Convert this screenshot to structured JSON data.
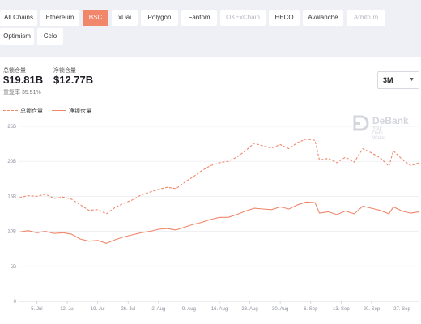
{
  "chains": [
    {
      "label": "All Chains",
      "state": "normal"
    },
    {
      "label": "Ethereum",
      "state": "normal"
    },
    {
      "label": "BSC",
      "state": "active"
    },
    {
      "label": "xDai",
      "state": "normal"
    },
    {
      "label": "Polygon",
      "state": "normal"
    },
    {
      "label": "Fantom",
      "state": "normal"
    },
    {
      "label": "OKExChain",
      "state": "disabled"
    },
    {
      "label": "HECO",
      "state": "normal"
    },
    {
      "label": "Avalanche",
      "state": "normal"
    },
    {
      "label": "Arbitrum",
      "state": "disabled"
    },
    {
      "label": "Optimism",
      "state": "normal"
    },
    {
      "label": "Celo",
      "state": "normal"
    }
  ],
  "stats": {
    "total_label": "总锁仓量",
    "total_value": "$19.81B",
    "net_label": "净锁仓量",
    "net_value": "$12.77B",
    "ratio_text": "重复率 35.51%"
  },
  "period": {
    "value": "3M"
  },
  "legend": {
    "total": "总锁仓量",
    "net": "净锁仓量"
  },
  "watermark": {
    "title": "DeBank",
    "subtitle": "Your DeFi Wallet"
  },
  "colors": {
    "accent": "#f0866a",
    "grid": "#e6e8ee",
    "axis_text": "#8a8e9a"
  },
  "chart_data": {
    "type": "line",
    "y_unit": "B",
    "ylim": [
      0,
      25
    ],
    "y_ticks": [
      "0",
      "5B",
      "10B",
      "15B",
      "20B",
      "25B"
    ],
    "x_ticks": [
      "5. Jul",
      "12. Jul",
      "19. Jul",
      "26. Jul",
      "2. Aug",
      "9. Aug",
      "16. Aug",
      "23. Aug",
      "30. Aug",
      "6. Sep",
      "13. Sep",
      "20. Sep",
      "27. Sep"
    ],
    "x_range": [
      "2021-07-01",
      "2021-10-01"
    ],
    "grid": true,
    "legend_position": "top-left",
    "series": [
      {
        "name": "总锁仓量",
        "style": "dashed",
        "points": [
          [
            "2021-07-01",
            14.8
          ],
          [
            "2021-07-03",
            15.1
          ],
          [
            "2021-07-05",
            15.0
          ],
          [
            "2021-07-07",
            15.3
          ],
          [
            "2021-07-09",
            14.7
          ],
          [
            "2021-07-11",
            14.9
          ],
          [
            "2021-07-13",
            14.6
          ],
          [
            "2021-07-15",
            13.8
          ],
          [
            "2021-07-17",
            13.0
          ],
          [
            "2021-07-19",
            13.1
          ],
          [
            "2021-07-21",
            12.5
          ],
          [
            "2021-07-23",
            13.4
          ],
          [
            "2021-07-25",
            14.0
          ],
          [
            "2021-07-27",
            14.5
          ],
          [
            "2021-07-29",
            15.2
          ],
          [
            "2021-07-31",
            15.6
          ],
          [
            "2021-08-02",
            16.0
          ],
          [
            "2021-08-04",
            16.3
          ],
          [
            "2021-08-06",
            16.1
          ],
          [
            "2021-08-08",
            17.0
          ],
          [
            "2021-08-10",
            17.8
          ],
          [
            "2021-08-12",
            18.7
          ],
          [
            "2021-08-14",
            19.4
          ],
          [
            "2021-08-16",
            19.8
          ],
          [
            "2021-08-18",
            20.0
          ],
          [
            "2021-08-20",
            20.6
          ],
          [
            "2021-08-22",
            21.5
          ],
          [
            "2021-08-24",
            22.6
          ],
          [
            "2021-08-26",
            22.2
          ],
          [
            "2021-08-28",
            21.9
          ],
          [
            "2021-08-30",
            22.4
          ],
          [
            "2021-09-01",
            21.8
          ],
          [
            "2021-09-03",
            22.7
          ],
          [
            "2021-09-05",
            23.2
          ],
          [
            "2021-09-07",
            23.0
          ],
          [
            "2021-09-08",
            20.2
          ],
          [
            "2021-09-10",
            20.4
          ],
          [
            "2021-09-12",
            19.8
          ],
          [
            "2021-09-14",
            20.6
          ],
          [
            "2021-09-16",
            19.9
          ],
          [
            "2021-09-18",
            21.8
          ],
          [
            "2021-09-20",
            21.2
          ],
          [
            "2021-09-22",
            20.5
          ],
          [
            "2021-09-24",
            19.3
          ],
          [
            "2021-09-25",
            21.5
          ],
          [
            "2021-09-27",
            20.3
          ],
          [
            "2021-09-29",
            19.4
          ],
          [
            "2021-10-01",
            19.8
          ]
        ]
      },
      {
        "name": "净锁仓量",
        "style": "solid",
        "points": [
          [
            "2021-07-01",
            9.9
          ],
          [
            "2021-07-03",
            10.1
          ],
          [
            "2021-07-05",
            9.8
          ],
          [
            "2021-07-07",
            10.0
          ],
          [
            "2021-07-09",
            9.7
          ],
          [
            "2021-07-11",
            9.8
          ],
          [
            "2021-07-13",
            9.6
          ],
          [
            "2021-07-15",
            8.9
          ],
          [
            "2021-07-17",
            8.6
          ],
          [
            "2021-07-19",
            8.7
          ],
          [
            "2021-07-21",
            8.3
          ],
          [
            "2021-07-23",
            8.8
          ],
          [
            "2021-07-25",
            9.2
          ],
          [
            "2021-07-27",
            9.5
          ],
          [
            "2021-07-29",
            9.8
          ],
          [
            "2021-07-31",
            10.0
          ],
          [
            "2021-08-02",
            10.3
          ],
          [
            "2021-08-04",
            10.4
          ],
          [
            "2021-08-06",
            10.2
          ],
          [
            "2021-08-08",
            10.6
          ],
          [
            "2021-08-10",
            11.0
          ],
          [
            "2021-08-12",
            11.3
          ],
          [
            "2021-08-14",
            11.7
          ],
          [
            "2021-08-16",
            12.0
          ],
          [
            "2021-08-18",
            12.0
          ],
          [
            "2021-08-20",
            12.4
          ],
          [
            "2021-08-22",
            12.9
          ],
          [
            "2021-08-24",
            13.3
          ],
          [
            "2021-08-26",
            13.2
          ],
          [
            "2021-08-28",
            13.1
          ],
          [
            "2021-08-30",
            13.5
          ],
          [
            "2021-09-01",
            13.2
          ],
          [
            "2021-09-03",
            13.8
          ],
          [
            "2021-09-05",
            14.2
          ],
          [
            "2021-09-07",
            14.1
          ],
          [
            "2021-09-08",
            12.6
          ],
          [
            "2021-09-10",
            12.8
          ],
          [
            "2021-09-12",
            12.4
          ],
          [
            "2021-09-14",
            12.9
          ],
          [
            "2021-09-16",
            12.5
          ],
          [
            "2021-09-18",
            13.6
          ],
          [
            "2021-09-20",
            13.3
          ],
          [
            "2021-09-22",
            13.0
          ],
          [
            "2021-09-24",
            12.5
          ],
          [
            "2021-09-25",
            13.5
          ],
          [
            "2021-09-27",
            12.9
          ],
          [
            "2021-09-29",
            12.6
          ],
          [
            "2021-10-01",
            12.8
          ]
        ]
      }
    ]
  }
}
